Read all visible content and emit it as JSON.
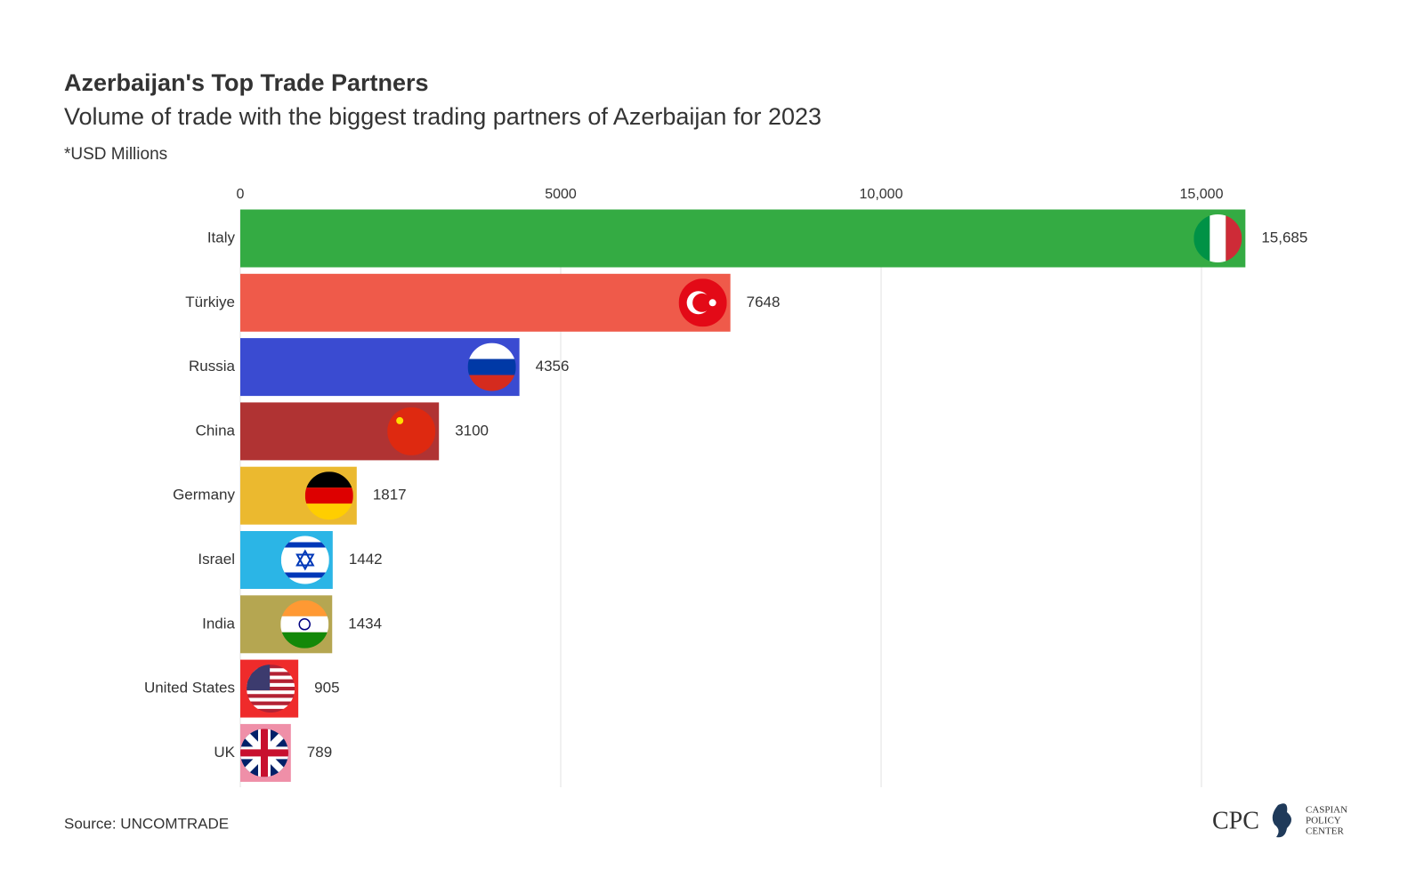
{
  "chart_data": {
    "type": "hbar",
    "title": "Azerbaijan's Top Trade Partners",
    "subtitle": "Volume of trade with the biggest trading partners of Azerbaijan for 2023",
    "unit_note": "*USD Millions",
    "source": "Source: UNCOMTRADE",
    "logo": {
      "short": "CPC",
      "lines": [
        "CASPIAN",
        "POLICY",
        "CENTER"
      ]
    },
    "categories": [
      "Italy",
      "Türkiye",
      "Russia",
      "China",
      "Germany",
      "Israel",
      "India",
      "United States",
      "UK"
    ],
    "values": [
      15685,
      7648,
      4356,
      3100,
      1817,
      1442,
      1434,
      905,
      789
    ],
    "value_labels": [
      "15,685",
      "7648",
      "4356",
      "3100",
      "1817",
      "1442",
      "1434",
      "905",
      "789"
    ],
    "colors": [
      "#34ab43",
      "#ef5a4a",
      "#3a4bd1",
      "#b03333",
      "#ebb92f",
      "#2bb5e6",
      "#b5a651",
      "#ef2b2b",
      "#ef8fa8"
    ],
    "xlim": [
      0,
      16000
    ],
    "xticks": [
      0,
      5000,
      {
        "value": 10000,
        "label": "10,000"
      },
      {
        "value": 15000,
        "label": "15,000"
      }
    ],
    "grid": true
  }
}
